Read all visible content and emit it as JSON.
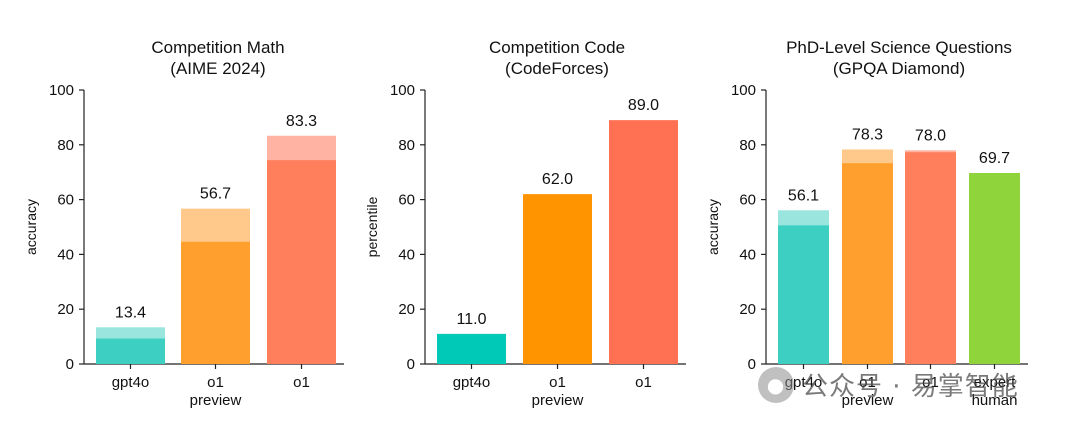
{
  "chart_data": [
    {
      "type": "bar",
      "title": "Competition Math",
      "subtitle": "(AIME 2024)",
      "ylabel": "accuracy",
      "ylim": [
        0,
        100
      ],
      "yticks": [
        0,
        20,
        40,
        60,
        80,
        100
      ],
      "categories": [
        [
          "gpt4o"
        ],
        [
          "o1",
          "preview"
        ],
        [
          "o1"
        ]
      ],
      "series": [
        {
          "values": [
            13.4,
            56.7,
            83.3
          ],
          "style": "light"
        },
        {
          "values": [
            9.3,
            44.6,
            74.4
          ],
          "style": "solid"
        }
      ],
      "data_labels": [
        "13.4",
        "56.7",
        "83.3"
      ],
      "colors_solid": [
        "#3ECFC3",
        "#FF9F2E",
        "#FF7F5C"
      ],
      "colors_light": [
        "#9AE6DF",
        "#FFC98C",
        "#FFB3A2"
      ],
      "grid": false
    },
    {
      "type": "bar",
      "title": "Competition Code",
      "subtitle": "(CodeForces)",
      "ylabel": "percentile",
      "ylim": [
        0,
        100
      ],
      "yticks": [
        0,
        20,
        40,
        60,
        80,
        100
      ],
      "categories": [
        [
          "gpt4o"
        ],
        [
          "o1",
          "preview"
        ],
        [
          "o1"
        ]
      ],
      "series": [
        {
          "values": [
            11.0,
            62.0,
            89.0
          ],
          "style": "solid"
        }
      ],
      "data_labels": [
        "11.0",
        "62.0",
        "89.0"
      ],
      "colors_solid": [
        "#00C9B8",
        "#FF9400",
        "#FF7152"
      ],
      "grid": false
    },
    {
      "type": "bar",
      "title": "PhD-Level Science Questions",
      "subtitle": "(GPQA Diamond)",
      "ylabel": "accuracy",
      "ylim": [
        0,
        100
      ],
      "yticks": [
        0,
        20,
        40,
        60,
        80,
        100
      ],
      "categories": [
        [
          "gpt4o"
        ],
        [
          "o1",
          "preview"
        ],
        [
          "o1"
        ],
        [
          "expert",
          "human"
        ]
      ],
      "series": [
        {
          "values": [
            56.1,
            78.3,
            78.0,
            69.7
          ],
          "style": "light"
        },
        {
          "values": [
            50.6,
            73.3,
            77.3,
            69.7
          ],
          "style": "solid"
        }
      ],
      "data_labels": [
        "56.1",
        "78.3",
        "78.0",
        "69.7"
      ],
      "colors_solid": [
        "#3ECFC3",
        "#FF9F2E",
        "#FF7F5C",
        "#8FD43A"
      ],
      "colors_light": [
        "#9AE6DF",
        "#FFC98C",
        "#FFB3A2",
        "#8FD43A"
      ],
      "grid": false
    }
  ],
  "watermark": {
    "icon": "wechat-icon",
    "text": "公众号 · 易掌智能"
  }
}
